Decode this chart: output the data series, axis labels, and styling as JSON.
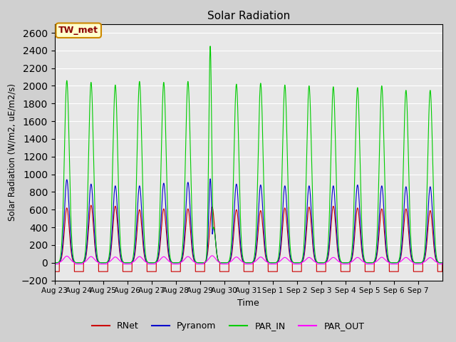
{
  "title": "Solar Radiation",
  "ylabel": "Solar Radiation (W/m2, uE/m2/s)",
  "xlabel": "Time",
  "ylim": [
    -200,
    2700
  ],
  "yticks": [
    -200,
    0,
    200,
    400,
    600,
    800,
    1000,
    1200,
    1400,
    1600,
    1800,
    2000,
    2200,
    2400,
    2600
  ],
  "fig_bg_color": "#d0d0d0",
  "plot_bg_color": "#e8e8e8",
  "legend_labels": [
    "RNet",
    "Pyranom",
    "PAR_IN",
    "PAR_OUT"
  ],
  "legend_colors": [
    "#cc0000",
    "#0000cc",
    "#00cc00",
    "#ff00ff"
  ],
  "annotation_text": "TW_met",
  "annotation_bg": "#ffffcc",
  "annotation_border": "#cc8800",
  "n_days": 16,
  "tick_labels": [
    "Aug 23",
    "Aug 24",
    "Aug 25",
    "Aug 26",
    "Aug 27",
    "Aug 28",
    "Aug 29",
    "Aug 30",
    "Aug 31",
    "Sep 1",
    "Sep 2",
    "Sep 3",
    "Sep 4",
    "Sep 5",
    "Sep 6",
    "Sep 7"
  ],
  "par_in_peaks": [
    2060,
    2040,
    2010,
    2050,
    2040,
    2050,
    2450,
    2020,
    2030,
    2010,
    2000,
    1990,
    1980,
    2000,
    1950,
    1950
  ],
  "pyranom_peaks": [
    940,
    890,
    870,
    870,
    900,
    910,
    950,
    890,
    880,
    870,
    870,
    870,
    880,
    870,
    860,
    860
  ],
  "rnet_peaks": [
    620,
    650,
    640,
    600,
    610,
    610,
    630,
    600,
    590,
    620,
    630,
    640,
    620,
    610,
    610,
    590
  ],
  "par_out_peaks": [
    75,
    70,
    65,
    70,
    68,
    70,
    80,
    65,
    65,
    60,
    60,
    60,
    60,
    62,
    60,
    58
  ],
  "spike_day": 6,
  "spike_peak": 2450,
  "night_rnet": -100,
  "night_par_out": -20
}
